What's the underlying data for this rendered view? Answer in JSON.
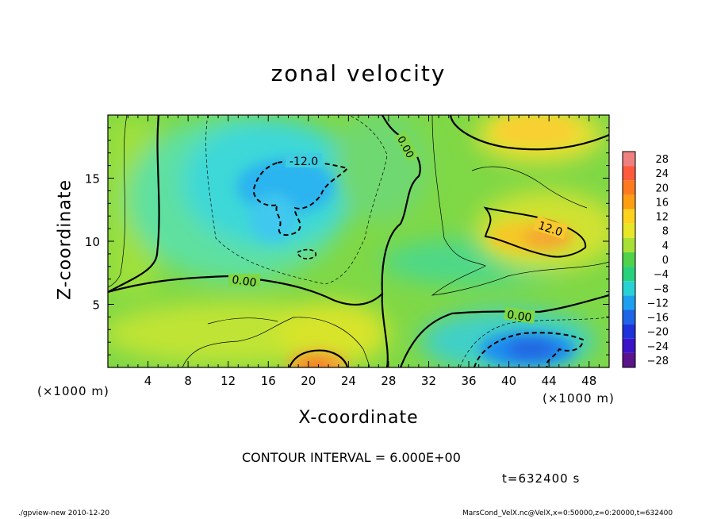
{
  "chart_data": {
    "type": "heatmap",
    "title": "zonal velocity",
    "xlabel": "X-coordinate",
    "ylabel": "Z-coordinate",
    "x_unit": "(×1000 m)",
    "y_unit": "(×1000 m)",
    "xlim": [
      0,
      50
    ],
    "ylim": [
      0,
      20
    ],
    "x_ticks": [
      4,
      8,
      12,
      16,
      20,
      24,
      28,
      32,
      36,
      40,
      44,
      48
    ],
    "y_ticks": [
      5,
      10,
      15
    ],
    "colorbar": {
      "labels": [
        28,
        24,
        20,
        16,
        12,
        8,
        4,
        0,
        -4,
        -8,
        -12,
        -16,
        -20,
        -24,
        -28
      ],
      "colors": [
        "#f08080",
        "#ff5a3c",
        "#ff7a1e",
        "#ff9e14",
        "#ffd21e",
        "#e8e628",
        "#a8e036",
        "#50d24a",
        "#28d27c",
        "#28d2d2",
        "#1ea0f0",
        "#1e64e6",
        "#1e32dc",
        "#3c14c8",
        "#5a148c"
      ]
    },
    "contour_interval": "CONTOUR INTERVAL = 6.000E+00",
    "contour_labels": [
      "-12.0",
      "0.00",
      "12.0",
      "0.00",
      "0.00"
    ],
    "features": [
      {
        "label": "-12.0",
        "x": 19,
        "z": 15,
        "kind": "min"
      },
      {
        "label": "12.0",
        "x": 43,
        "z": 11,
        "kind": "max"
      },
      {
        "label": "",
        "x": 43,
        "z": 1.5,
        "kind": "min"
      },
      {
        "label": "",
        "x": 21,
        "z": 0.5,
        "kind": "max"
      },
      {
        "label": "",
        "x": 43,
        "z": 18.5,
        "kind": "max"
      }
    ],
    "time": "t=632400 s"
  },
  "footer": {
    "left": "./gpview-new   2010-12-20",
    "right": "MarsCond_VelX.nc@VelX,x=0:50000,z=0:20000,t=632400"
  }
}
